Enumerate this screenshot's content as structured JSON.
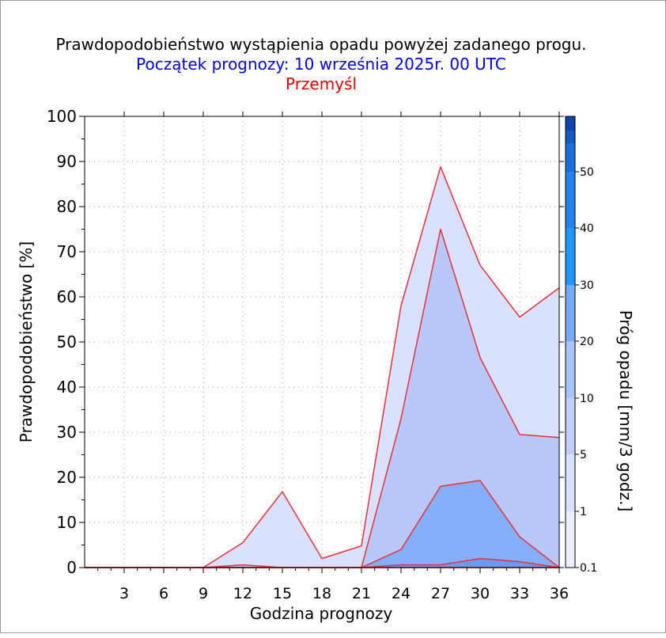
{
  "chart_data": {
    "type": "area",
    "title": "Prawdopodobieństwo wystąpienia opadu powyżej zadanego progu.",
    "subtitle": "Początek prognozy: 10 września 2025r. 00 UTC",
    "location": "Przemyśl",
    "xlabel": "Godzina prognozy",
    "ylabel": "Prawdopodobieństwo [%]",
    "colorbar_label": "Próg opadu [mm/3 godz.]",
    "xlim": [
      0,
      36
    ],
    "ylim": [
      0,
      100
    ],
    "x_ticks": [
      "3",
      "6",
      "9",
      "12",
      "15",
      "18",
      "21",
      "24",
      "27",
      "30",
      "33",
      "36"
    ],
    "y_ticks": [
      "0",
      "10",
      "20",
      "30",
      "40",
      "50",
      "60",
      "70",
      "80",
      "90",
      "100"
    ],
    "x": [
      0,
      3,
      6,
      9,
      12,
      15,
      18,
      21,
      24,
      27,
      30,
      33,
      36
    ],
    "series": [
      {
        "threshold": 0.1,
        "color": "#d9e1fe",
        "values": [
          0,
          0,
          0,
          0,
          5.5,
          16.8,
          2,
          4.8,
          58,
          88.8,
          67,
          55.5,
          62
        ]
      },
      {
        "threshold": 1,
        "color": "#c2cffc",
        "values": [
          0,
          0,
          0,
          0,
          0,
          0,
          0,
          0,
          0,
          0,
          0,
          0,
          0
        ]
      },
      {
        "threshold": 5,
        "color": "#b8c8fb",
        "values": [
          0,
          0,
          0,
          0,
          0.6,
          0,
          0,
          0,
          33,
          75,
          46.5,
          29.5,
          28.8
        ]
      },
      {
        "threshold": 10,
        "color": "#85aefb",
        "values": [
          0,
          0,
          0,
          0,
          0,
          0,
          0,
          0,
          4,
          18,
          19.3,
          6.8,
          0
        ]
      },
      {
        "threshold": 20,
        "color": "#6a9cf6",
        "values": [
          0,
          0,
          0,
          0,
          0,
          0,
          0,
          0,
          0.6,
          0.6,
          2,
          1.3,
          0
        ]
      }
    ],
    "colorbar": {
      "labels": [
        "0.1",
        "1",
        "5",
        "10",
        "20",
        "30",
        "40",
        "50"
      ],
      "bands": [
        "#eceffe",
        "#d9e1fe",
        "#c2cffc",
        "#a9c3fb",
        "#76aaf9",
        "#1f97ff",
        "#2382ec",
        "#1a6fdc",
        "#1459c4",
        "#0e46ad"
      ]
    },
    "grid": true,
    "line_color": "#e8303c"
  }
}
